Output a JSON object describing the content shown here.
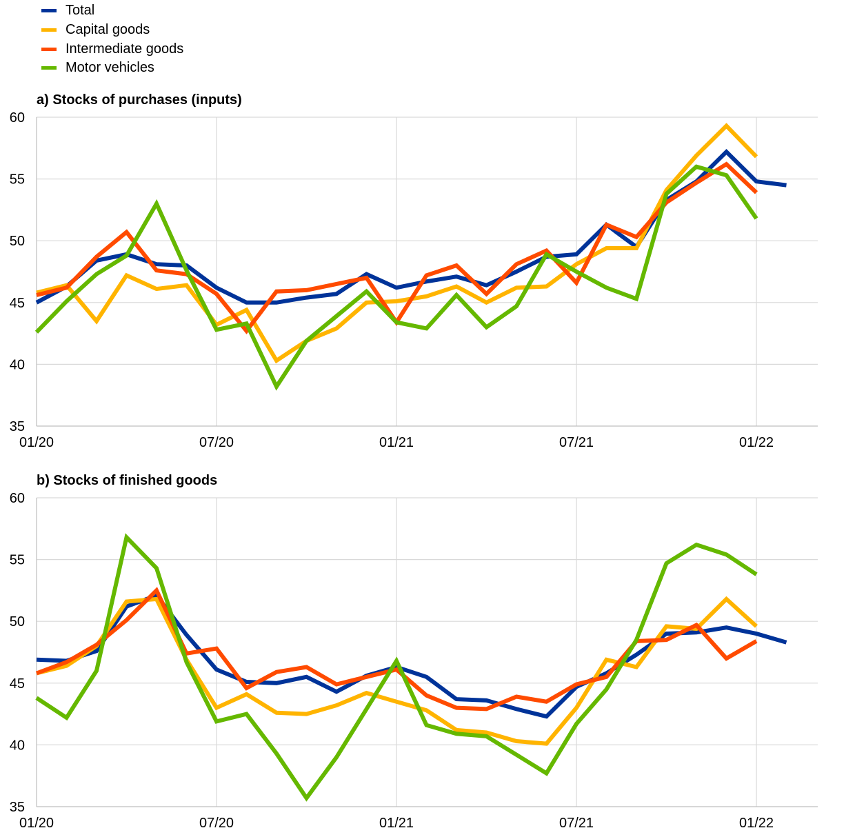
{
  "legend": [
    {
      "name": "Total",
      "color": "#003399"
    },
    {
      "name": "Capital goods",
      "color": "#ffb400"
    },
    {
      "name": "Intermediate goods",
      "color": "#ff4b00"
    },
    {
      "name": "Motor vehicles",
      "color": "#65b800"
    }
  ],
  "chart_data": [
    {
      "type": "line",
      "title": "a) Stocks of purchases (inputs)",
      "x_tick_labels": [
        "01/20",
        "07/20",
        "01/21",
        "07/21",
        "01/22"
      ],
      "x_tick_index": [
        0,
        6,
        12,
        18,
        24
      ],
      "ylim": [
        35,
        60
      ],
      "y_ticks": [
        35,
        40,
        45,
        50,
        55,
        60
      ],
      "grid": true,
      "legend_position": "top-left",
      "series": [
        {
          "name": "Total",
          "color": "#003399",
          "values": [
            45.0,
            46.3,
            48.4,
            48.9,
            48.1,
            48.0,
            46.2,
            45.0,
            45.0,
            45.4,
            45.7,
            47.3,
            46.2,
            46.7,
            47.1,
            46.4,
            47.5,
            48.7,
            48.9,
            51.3,
            49.5,
            53.3,
            54.8,
            57.2,
            54.8,
            54.5
          ]
        },
        {
          "name": "Capital goods",
          "color": "#ffb400",
          "values": [
            45.8,
            46.4,
            43.5,
            47.2,
            46.1,
            46.4,
            43.2,
            44.4,
            40.3,
            41.9,
            42.9,
            45.0,
            45.1,
            45.5,
            46.3,
            45.0,
            46.2,
            46.3,
            48.1,
            49.4,
            49.4,
            54.1,
            56.9,
            59.3,
            56.8,
            null
          ]
        },
        {
          "name": "Intermediate goods",
          "color": "#ff4b00",
          "values": [
            45.6,
            46.2,
            48.7,
            50.7,
            47.6,
            47.3,
            45.7,
            42.7,
            45.9,
            46.0,
            46.5,
            47.0,
            43.4,
            47.2,
            48.0,
            45.7,
            48.1,
            49.2,
            46.6,
            51.3,
            50.3,
            53.1,
            54.7,
            56.2,
            53.9,
            null
          ]
        },
        {
          "name": "Motor vehicles",
          "color": "#65b800",
          "values": [
            42.6,
            45.1,
            47.3,
            48.8,
            53.0,
            47.6,
            42.8,
            43.3,
            38.2,
            41.9,
            43.9,
            45.9,
            43.4,
            42.9,
            45.6,
            43.0,
            44.7,
            48.9,
            47.5,
            46.2,
            45.3,
            53.8,
            56.0,
            55.3,
            51.8,
            null
          ]
        }
      ]
    },
    {
      "type": "line",
      "title": "b) Stocks of finished goods",
      "x_tick_labels": [
        "01/20",
        "07/20",
        "01/21",
        "07/21",
        "01/22"
      ],
      "x_tick_index": [
        0,
        6,
        12,
        18,
        24
      ],
      "ylim": [
        35,
        60
      ],
      "y_ticks": [
        35,
        40,
        45,
        50,
        55,
        60
      ],
      "grid": true,
      "series": [
        {
          "name": "Total",
          "color": "#003399",
          "values": [
            46.9,
            46.8,
            47.6,
            51.2,
            52.1,
            48.9,
            46.1,
            45.1,
            45.0,
            45.5,
            44.3,
            45.6,
            46.3,
            45.5,
            43.7,
            43.6,
            42.9,
            42.3,
            44.7,
            45.8,
            47.3,
            49.0,
            49.1,
            49.5,
            49.0,
            48.3
          ]
        },
        {
          "name": "Capital goods",
          "color": "#ffb400",
          "values": [
            45.8,
            46.4,
            48.0,
            51.6,
            51.8,
            46.9,
            43.0,
            44.1,
            42.6,
            42.5,
            43.2,
            44.2,
            43.5,
            42.8,
            41.2,
            41.0,
            40.3,
            40.1,
            43.0,
            46.9,
            46.3,
            49.6,
            49.4,
            51.8,
            49.6,
            null
          ]
        },
        {
          "name": "Intermediate goods",
          "color": "#ff4b00",
          "values": [
            45.8,
            46.7,
            48.1,
            50.1,
            52.5,
            47.4,
            47.8,
            44.6,
            45.9,
            46.3,
            44.9,
            45.5,
            46.1,
            44.0,
            43.0,
            42.9,
            43.9,
            43.5,
            44.9,
            45.5,
            48.4,
            48.5,
            49.7,
            47.0,
            48.4,
            null
          ]
        },
        {
          "name": "Motor vehicles",
          "color": "#65b800",
          "values": [
            43.8,
            42.2,
            46.0,
            56.8,
            54.3,
            46.7,
            41.9,
            42.5,
            39.3,
            35.7,
            39.0,
            42.9,
            46.8,
            41.6,
            40.9,
            40.7,
            39.2,
            37.7,
            41.7,
            44.5,
            48.5,
            54.7,
            56.2,
            55.4,
            53.8,
            null
          ]
        }
      ]
    }
  ]
}
